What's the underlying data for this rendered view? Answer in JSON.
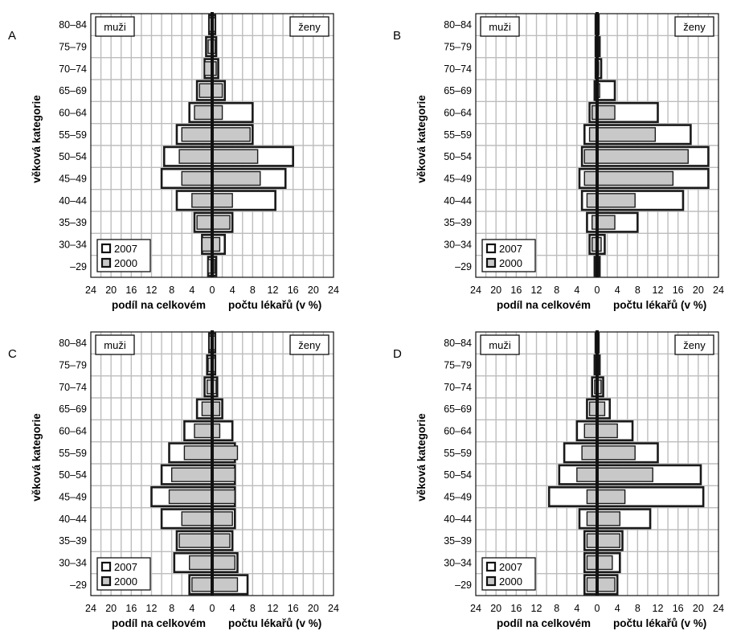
{
  "ticks": [
    "24",
    "20",
    "16",
    "12",
    "8",
    "4",
    "0",
    "4",
    "8",
    "12",
    "16",
    "20",
    "24"
  ],
  "colors": {
    "fill_2000": "#c8c8c8",
    "fill_2007": "#ffffff",
    "outline": "#1a1a1a",
    "grid": "#bdbdbd",
    "axis": "#111111"
  },
  "chart_data": [
    {
      "type": "bar",
      "panel_label": "A",
      "ylabel": "věková kategorie",
      "xlabel_left": "podíl na celkovém",
      "xlabel_right": "počtu lékařů  (v %)",
      "left_box": "muži",
      "right_box": "ženy",
      "xlim": [
        -24,
        24
      ],
      "grid": true,
      "legend_position": "bottom-left",
      "categories": [
        "80–84",
        "75–79",
        "70–74",
        "65–69",
        "60–64",
        "55–59",
        "50–54",
        "45–49",
        "40–44",
        "35–39",
        "30–34",
        "–29"
      ],
      "series": [
        {
          "name": "2007",
          "men": [
            0.6,
            1.2,
            1.5,
            3,
            4.5,
            7,
            9.5,
            10,
            7,
            3.5,
            2,
            0.8
          ],
          "women": [
            0.6,
            0.8,
            1.2,
            2.5,
            8,
            8,
            16,
            14.5,
            12.5,
            4,
            2.5,
            0.8
          ]
        },
        {
          "name": "2000",
          "men": [
            0.6,
            0.8,
            1.5,
            2.5,
            3.5,
            6,
            6.5,
            6,
            4,
            3,
            2,
            0.8
          ],
          "women": [
            0.6,
            0.6,
            0.8,
            2,
            2,
            7.5,
            9,
            9.5,
            4,
            3.5,
            1.5,
            0.5
          ]
        }
      ]
    },
    {
      "type": "bar",
      "panel_label": "B",
      "ylabel": "věková kategorie",
      "xlabel_left": "podíl na celkovém",
      "xlabel_right": "počtu lékařů  (v %)",
      "left_box": "muži",
      "right_box": "ženy",
      "xlim": [
        -24,
        24
      ],
      "grid": true,
      "legend_position": "bottom-left",
      "categories": [
        "80–84",
        "75–79",
        "70–74",
        "65–69",
        "60–64",
        "55–59",
        "50–54",
        "45–49",
        "40–44",
        "35–39",
        "30–34",
        "–29"
      ],
      "series": [
        {
          "name": "2007",
          "men": [
            0.3,
            0.3,
            0.3,
            0.5,
            1.5,
            2.5,
            3,
            3.5,
            3,
            2,
            1.5,
            0.5
          ],
          "women": [
            0.3,
            0.5,
            0.8,
            3.5,
            12,
            18.5,
            22,
            22,
            17,
            8,
            1.5,
            0.5
          ]
        },
        {
          "name": "2000",
          "men": [
            0.3,
            0.3,
            0.3,
            0.3,
            1,
            1.5,
            2.5,
            2.5,
            2,
            1,
            1,
            0.3
          ],
          "women": [
            0.3,
            0.3,
            0.3,
            0.5,
            3.5,
            11.5,
            18,
            15,
            7.5,
            3.5,
            0.8,
            0.3
          ]
        }
      ]
    },
    {
      "type": "bar",
      "panel_label": "C",
      "ylabel": "věková kategorie",
      "xlabel_left": "podíl na celkovém",
      "xlabel_right": "počtu lékařů  (v %)",
      "left_box": "muži",
      "right_box": "ženy",
      "xlim": [
        -24,
        24
      ],
      "grid": true,
      "legend_position": "bottom-left",
      "categories": [
        "80–84",
        "75–79",
        "70–74",
        "65–69",
        "60–64",
        "55–59",
        "50–54",
        "45–49",
        "40–44",
        "35–39",
        "30–34",
        "–29"
      ],
      "series": [
        {
          "name": "2007",
          "men": [
            0.6,
            1,
            1.5,
            3,
            5.5,
            8.5,
            10,
            12,
            10,
            7,
            7.5,
            4.5
          ],
          "women": [
            0.6,
            0.6,
            1,
            2,
            4,
            4.5,
            4.5,
            4.5,
            4.5,
            4,
            5,
            7
          ]
        },
        {
          "name": "2000",
          "men": [
            0.6,
            0.8,
            1,
            2,
            3.5,
            5.5,
            8,
            8.5,
            6,
            6.5,
            4.5,
            4
          ],
          "women": [
            0.6,
            0.6,
            0.8,
            1.5,
            1.5,
            5,
            4.5,
            4.5,
            4,
            3.5,
            4.5,
            5
          ]
        }
      ]
    },
    {
      "type": "bar",
      "panel_label": "D",
      "ylabel": "věková kategorie",
      "xlabel_left": "podíl na celkovém",
      "xlabel_right": "počtu lékařů  (v %)",
      "left_box": "muži",
      "right_box": "ženy",
      "xlim": [
        -24,
        24
      ],
      "grid": true,
      "legend_position": "bottom-left",
      "categories": [
        "80–84",
        "75–79",
        "70–74",
        "65–69",
        "60–64",
        "55–59",
        "50–54",
        "45–49",
        "40–44",
        "35–39",
        "30–34",
        "–29"
      ],
      "series": [
        {
          "name": "2007",
          "men": [
            0.3,
            0.5,
            1,
            2,
            4,
            6.5,
            7.5,
            9.5,
            3.5,
            2.5,
            2.5,
            2.5
          ],
          "women": [
            0.3,
            0.5,
            1.2,
            2.5,
            7,
            12,
            20.5,
            21,
            10.5,
            5,
            4.5,
            4
          ]
        },
        {
          "name": "2000",
          "men": [
            0.3,
            0.3,
            0.5,
            1.5,
            2.5,
            3,
            4,
            2,
            2,
            2,
            2,
            2
          ],
          "women": [
            0.3,
            0.3,
            0.8,
            1.5,
            4,
            7.5,
            11,
            5.5,
            4.5,
            4.5,
            3,
            3.5
          ]
        }
      ]
    }
  ]
}
